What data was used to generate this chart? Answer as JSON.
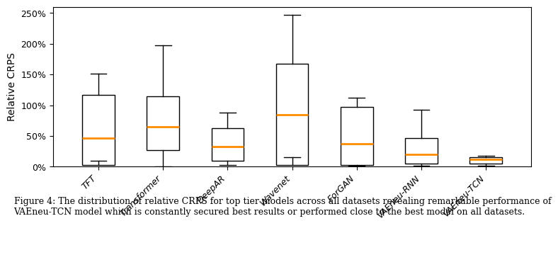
{
  "categories": [
    "TFT",
    "Transformer",
    "DeepAR",
    "Wavenet",
    "ForGAN",
    "VAEneu-RNN",
    "VAEneu-TCN"
  ],
  "boxes": [
    {
      "whislo": 0.1,
      "q1": 0.03,
      "median": 0.46,
      "q3": 1.17,
      "whishi": 1.52
    },
    {
      "whislo": 0.0,
      "q1": 0.27,
      "median": 0.65,
      "q3": 1.15,
      "whishi": 1.97
    },
    {
      "whislo": 0.03,
      "q1": 0.1,
      "median": 0.33,
      "q3": 0.63,
      "whishi": 0.88
    },
    {
      "whislo": 0.15,
      "q1": 0.03,
      "median": 0.85,
      "q3": 1.67,
      "whishi": 2.47
    },
    {
      "whislo": 0.02,
      "q1": 0.03,
      "median": 0.37,
      "q3": 0.97,
      "whishi": 1.12
    },
    {
      "whislo": 0.02,
      "q1": 0.05,
      "median": 0.2,
      "q3": 0.47,
      "whishi": 0.93
    },
    {
      "whislo": 0.02,
      "q1": 0.05,
      "median": 0.12,
      "q3": 0.15,
      "whishi": 0.18
    }
  ],
  "ylabel": "Relative CRPS",
  "ylim": [
    0.0,
    2.6
  ],
  "yticks": [
    0.0,
    0.5,
    1.0,
    1.5,
    2.0,
    2.5
  ],
  "ytick_labels": [
    "0%",
    "50%",
    "100%",
    "150%",
    "200%",
    "250%"
  ],
  "median_color": "#FF8C00",
  "box_color": "white",
  "whisker_color": "black",
  "box_edge_color": "black",
  "caption_line1": "Figure 4: The distribution of relative CRPS for top tier models across all datasets revealing remarkable performance of",
  "caption_line2": "VAEneu-TCN model which is constantly secured best results or performed close to the best model on all datasets.",
  "caption_fontsize": 9,
  "figsize": [
    7.94,
    3.76
  ],
  "dpi": 100
}
